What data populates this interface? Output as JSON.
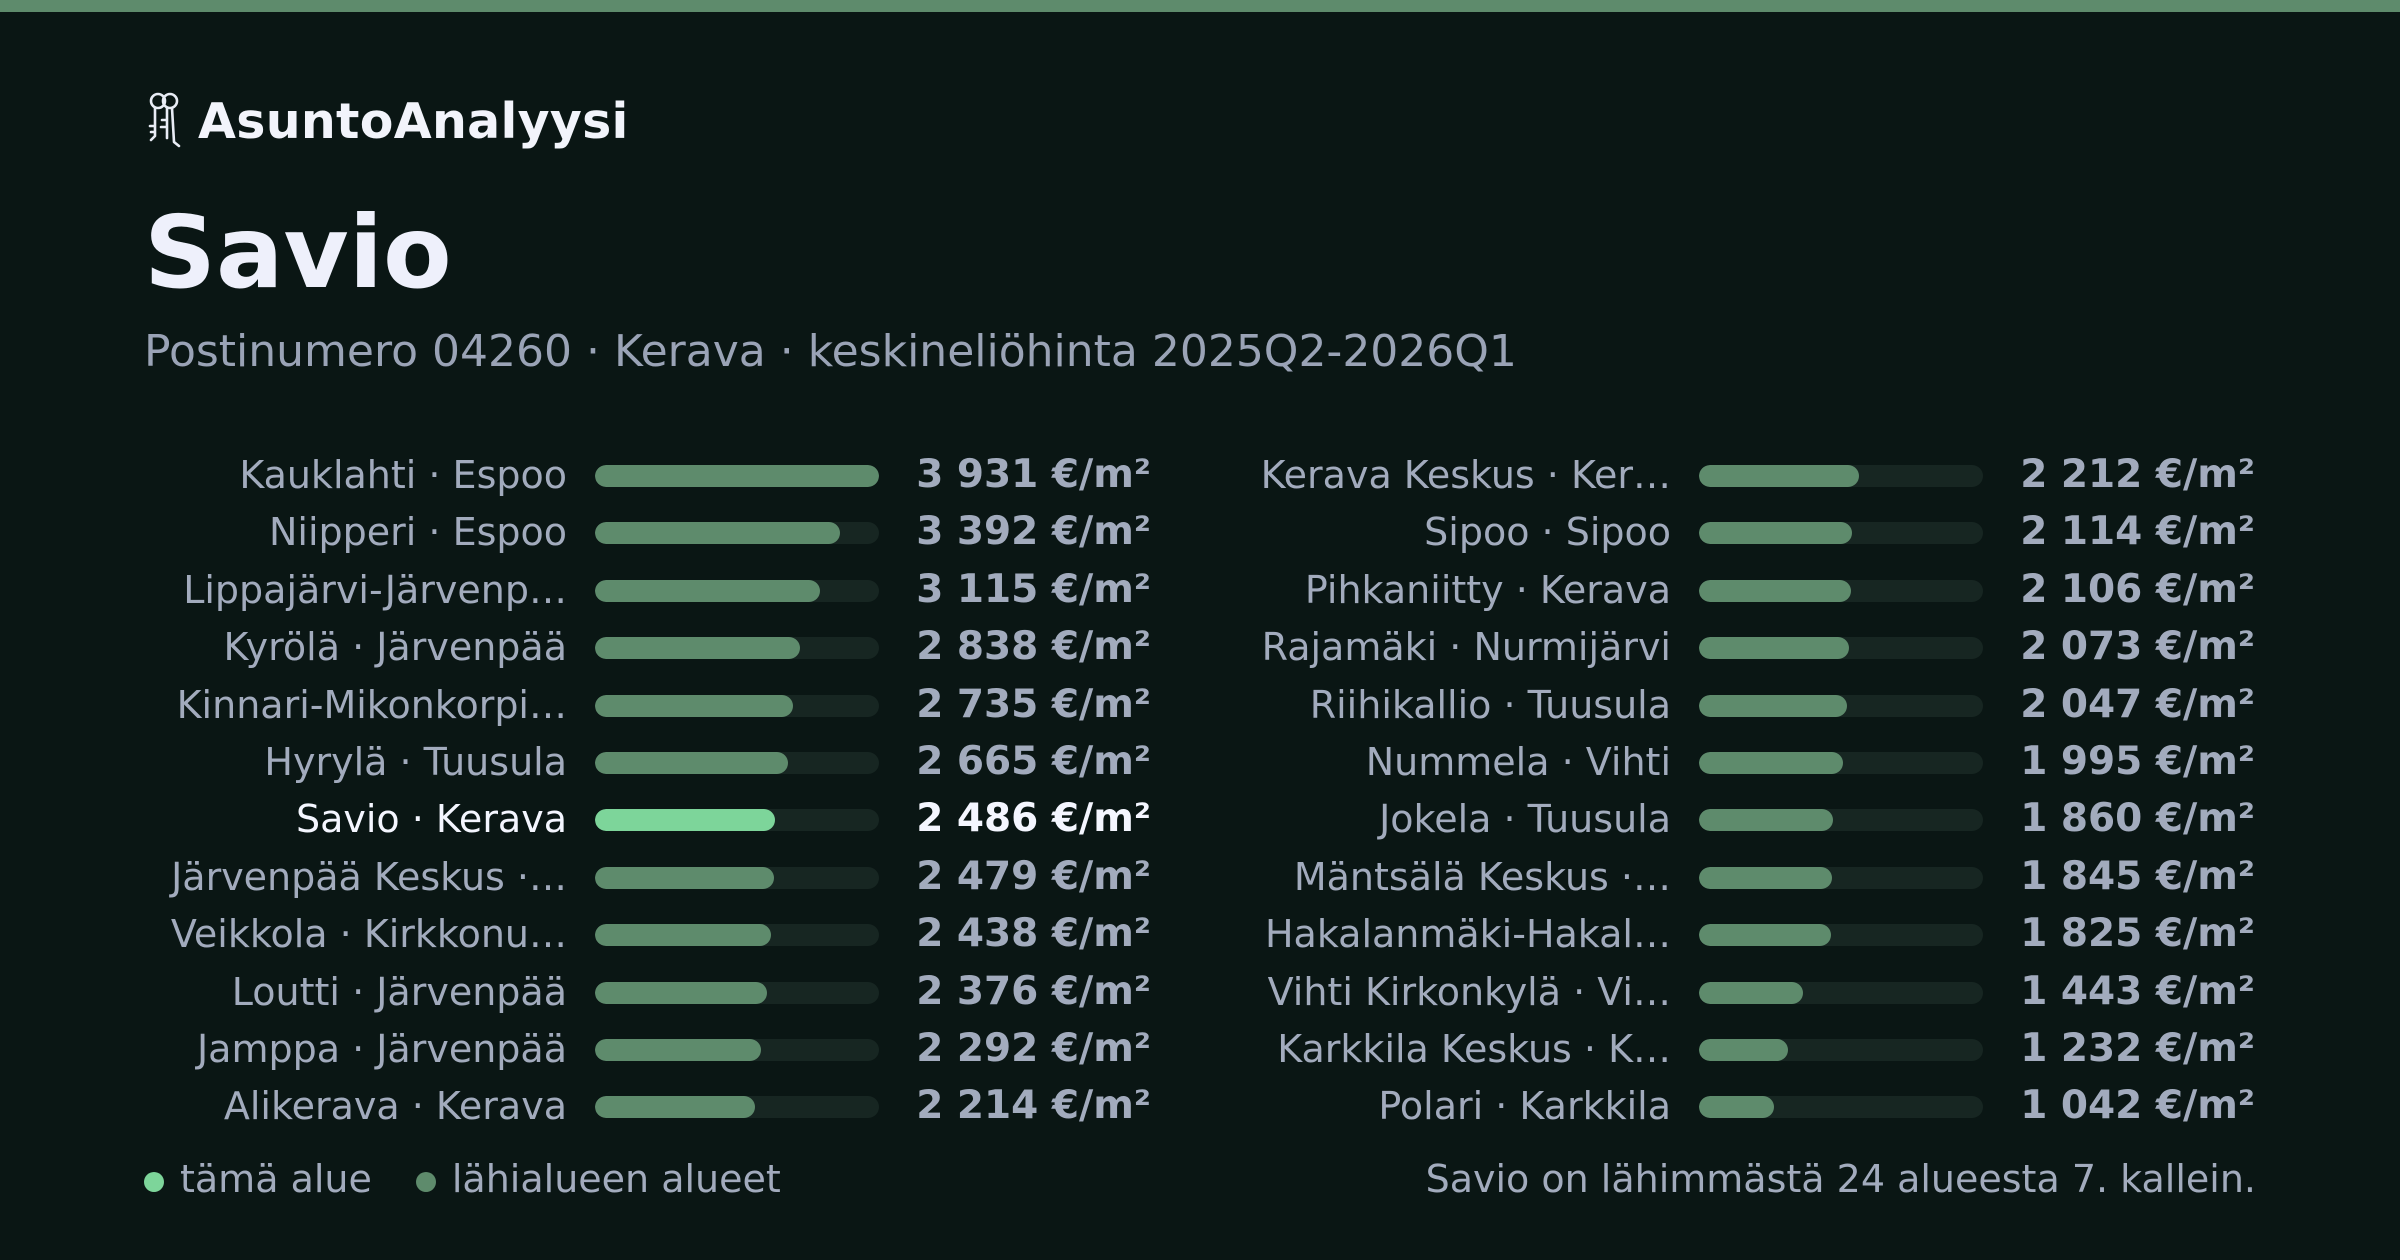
{
  "brand": {
    "name": "AsuntoAnalyysi",
    "icon": "keys-icon"
  },
  "title": "Savio",
  "subtitle": "Postinumero 04260 · Kerava · keskineliöhinta 2025Q2-2026Q1",
  "colors": {
    "background": "#0a1614",
    "accent_bar": "#5e8b6c",
    "highlight": "#7dd59a",
    "bar": "#5e8b6c",
    "track": "#172622",
    "text_muted": "#a2abbd",
    "text_bright": "#f4f6ff"
  },
  "chart_data": {
    "type": "bar",
    "orientation": "horizontal",
    "unit": "€/m²",
    "highlight_index": 6,
    "xlim": [
      0,
      3931
    ],
    "categories": [
      "Kauklahti · Espoo",
      "Niipperi · Espoo",
      "Lippajärvi-Järvenp…",
      "Kyrölä · Järvenpää",
      "Kinnari-Mikonkorpi…",
      "Hyrylä · Tuusula",
      "Savio · Kerava",
      "Järvenpää Keskus ·…",
      "Veikkola · Kirkkonu…",
      "Loutti · Järvenpää",
      "Jamppa · Järvenpää",
      "Alikerava · Kerava",
      "Kerava Keskus · Ker…",
      "Sipoo · Sipoo",
      "Pihkaniitty · Kerava",
      "Rajamäki · Nurmijärvi",
      "Riihikallio · Tuusula",
      "Nummela · Vihti",
      "Jokela · Tuusula",
      "Mäntsälä Keskus ·…",
      "Hakalanmäki-Hakal…",
      "Vihti Kirkonkylä · Vi…",
      "Karkkila Keskus · K…",
      "Polari · Karkkila"
    ],
    "values": [
      3931,
      3392,
      3115,
      2838,
      2735,
      2665,
      2486,
      2479,
      2438,
      2376,
      2292,
      2214,
      2212,
      2114,
      2106,
      2073,
      2047,
      1995,
      1860,
      1845,
      1825,
      1443,
      1232,
      1042
    ],
    "value_labels": [
      "3 931 €/m²",
      "3 392 €/m²",
      "3 115 €/m²",
      "2 838 €/m²",
      "2 735 €/m²",
      "2 665 €/m²",
      "2 486 €/m²",
      "2 479 €/m²",
      "2 438 €/m²",
      "2 376 €/m²",
      "2 292 €/m²",
      "2 214 €/m²",
      "2 212 €/m²",
      "2 114 €/m²",
      "2 106 €/m²",
      "2 073 €/m²",
      "2 047 €/m²",
      "1 995 €/m²",
      "1 860 €/m²",
      "1 845 €/m²",
      "1 825 €/m²",
      "1 443 €/m²",
      "1 232 €/m²",
      "1 042 €/m²"
    ]
  },
  "legend": {
    "this_area": "tämä alue",
    "nearby": "lähialueen alueet"
  },
  "footnote": "Savio on lähimmästä 24 alueesta 7. kallein."
}
